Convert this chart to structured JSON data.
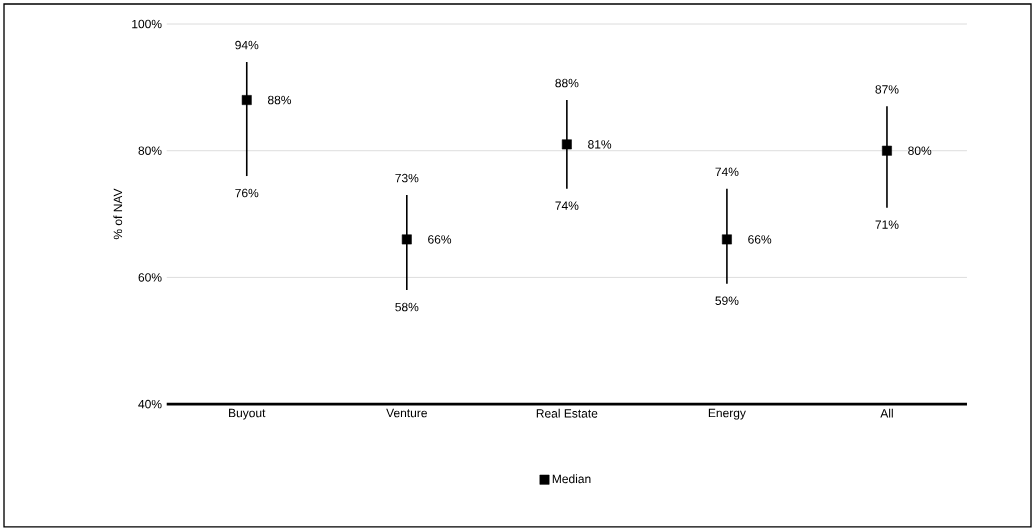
{
  "chart_data": {
    "type": "scatter",
    "ylabel": "% of NAV",
    "categories": [
      "Buyout",
      "Venture",
      "Real Estate",
      "Energy",
      "All"
    ],
    "series": [
      {
        "name": "Median",
        "color": "#000000",
        "values": [
          88,
          66,
          81,
          66,
          80
        ],
        "errors": [
          [
            76,
            94
          ],
          [
            58,
            73
          ],
          [
            74,
            88
          ],
          [
            59,
            74
          ],
          [
            71,
            87
          ]
        ],
        "value_labels": [
          "88%",
          "66%",
          "81%",
          "66%",
          "80%"
        ]
      }
    ],
    "ylim": [
      40,
      100
    ],
    "yticks": [
      {
        "value": 40,
        "label": "40%"
      },
      {
        "value": 60,
        "label": "60%"
      },
      {
        "value": 80,
        "label": "80%"
      },
      {
        "value": 100,
        "label": "100%"
      }
    ],
    "grid": "y",
    "legend": "bottom",
    "marker": "square",
    "annotations": [
      {
        "text": "94%",
        "x": "Buyout",
        "y": 94
      },
      {
        "text": "76%",
        "x": "Buyout",
        "y": 76
      },
      {
        "text": "73%",
        "x": "Venture",
        "y": 73
      },
      {
        "text": "58%",
        "x": "Venture",
        "y": 58
      },
      {
        "text": "88%",
        "x": "Real Estate",
        "y": 88
      },
      {
        "text": "74%",
        "x": "Real Estate",
        "y": 74
      },
      {
        "text": "74%",
        "x": "Energy",
        "y": 74
      },
      {
        "text": "59%",
        "x": "Energy",
        "y": 59
      },
      {
        "text": "87%",
        "x": "All",
        "y": 87
      },
      {
        "text": "71%",
        "x": "All",
        "y": 71
      }
    ]
  }
}
